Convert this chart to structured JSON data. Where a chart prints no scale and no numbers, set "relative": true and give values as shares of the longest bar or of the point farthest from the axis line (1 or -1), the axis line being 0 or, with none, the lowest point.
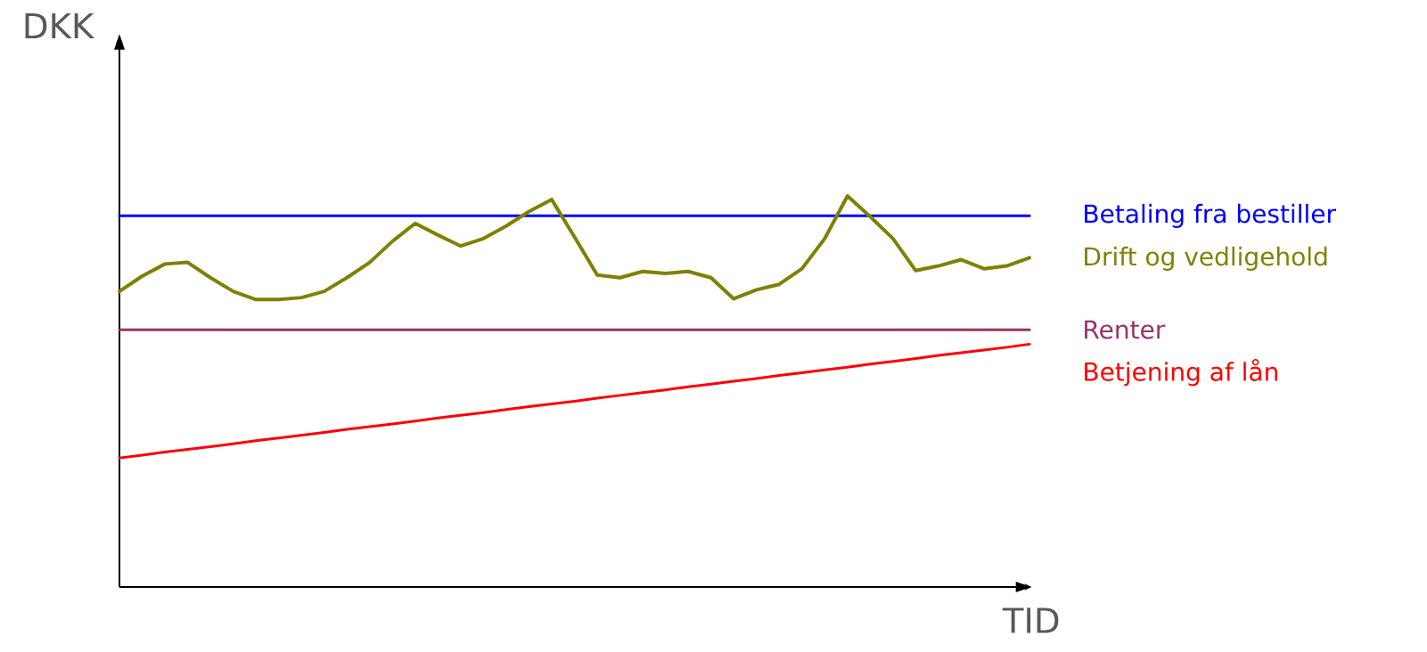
{
  "chart_data": {
    "type": "line",
    "relative": true,
    "xlabel": "TID",
    "ylabel": "DKK",
    "categories": [
      null,
      null,
      null,
      null,
      null,
      null,
      null,
      null,
      null,
      null,
      null,
      null,
      null,
      null,
      null,
      null,
      null,
      null,
      null,
      null,
      null,
      null,
      null,
      null,
      null,
      null,
      null,
      null,
      null,
      null,
      null,
      null,
      null,
      null,
      null,
      null,
      null,
      null,
      null,
      null,
      null
    ],
    "series": [
      {
        "name": "Betaling fra bestiller",
        "color": "#0000ff",
        "values": [
          0.949,
          0.949,
          0.949,
          0.949,
          0.949,
          0.949,
          0.949,
          0.949,
          0.949,
          0.949,
          0.949,
          0.949,
          0.949,
          0.949,
          0.949,
          0.949,
          0.949,
          0.949,
          0.949,
          0.949,
          0.949,
          0.949,
          0.949,
          0.949,
          0.949,
          0.949,
          0.949,
          0.949,
          0.949,
          0.949,
          0.949,
          0.949,
          0.949,
          0.949,
          0.949,
          0.949,
          0.949,
          0.949,
          0.949,
          0.949,
          0.949
        ]
      },
      {
        "name": "Drift og vedligehold",
        "color": "#808000",
        "values": [
          0.756,
          0.795,
          0.826,
          0.83,
          0.791,
          0.756,
          0.735,
          0.735,
          0.74,
          0.756,
          0.791,
          0.83,
          0.884,
          0.93,
          0.9,
          0.872,
          0.891,
          0.923,
          0.96,
          0.991,
          0.895,
          0.798,
          0.791,
          0.807,
          0.802,
          0.807,
          0.791,
          0.737,
          0.76,
          0.774,
          0.814,
          0.891,
          1.0,
          0.947,
          0.891,
          0.809,
          0.821,
          0.837,
          0.814,
          0.821,
          0.842
        ]
      },
      {
        "name": "Renter",
        "color": "#993366",
        "values": [
          0.658,
          0.658,
          0.658,
          0.658,
          0.658,
          0.658,
          0.658,
          0.658,
          0.658,
          0.658,
          0.658,
          0.658,
          0.658,
          0.658,
          0.658,
          0.658,
          0.658,
          0.658,
          0.658,
          0.658,
          0.658,
          0.658,
          0.658,
          0.658,
          0.658,
          0.658,
          0.658,
          0.658,
          0.658,
          0.658,
          0.658,
          0.658,
          0.658,
          0.658,
          0.658,
          0.658,
          0.658,
          0.658,
          0.658,
          0.658,
          0.658
        ]
      },
      {
        "name": "Betjening af lån",
        "color": "#ff0000",
        "values": [
          0.33,
          0.337,
          0.345,
          0.352,
          0.359,
          0.366,
          0.374,
          0.381,
          0.388,
          0.395,
          0.403,
          0.41,
          0.417,
          0.424,
          0.432,
          0.439,
          0.446,
          0.454,
          0.461,
          0.468,
          0.475,
          0.483,
          0.49,
          0.497,
          0.504,
          0.512,
          0.519,
          0.526,
          0.533,
          0.541,
          0.548,
          0.555,
          0.562,
          0.57,
          0.577,
          0.584,
          0.592,
          0.599,
          0.606,
          0.613,
          0.621
        ]
      }
    ]
  }
}
